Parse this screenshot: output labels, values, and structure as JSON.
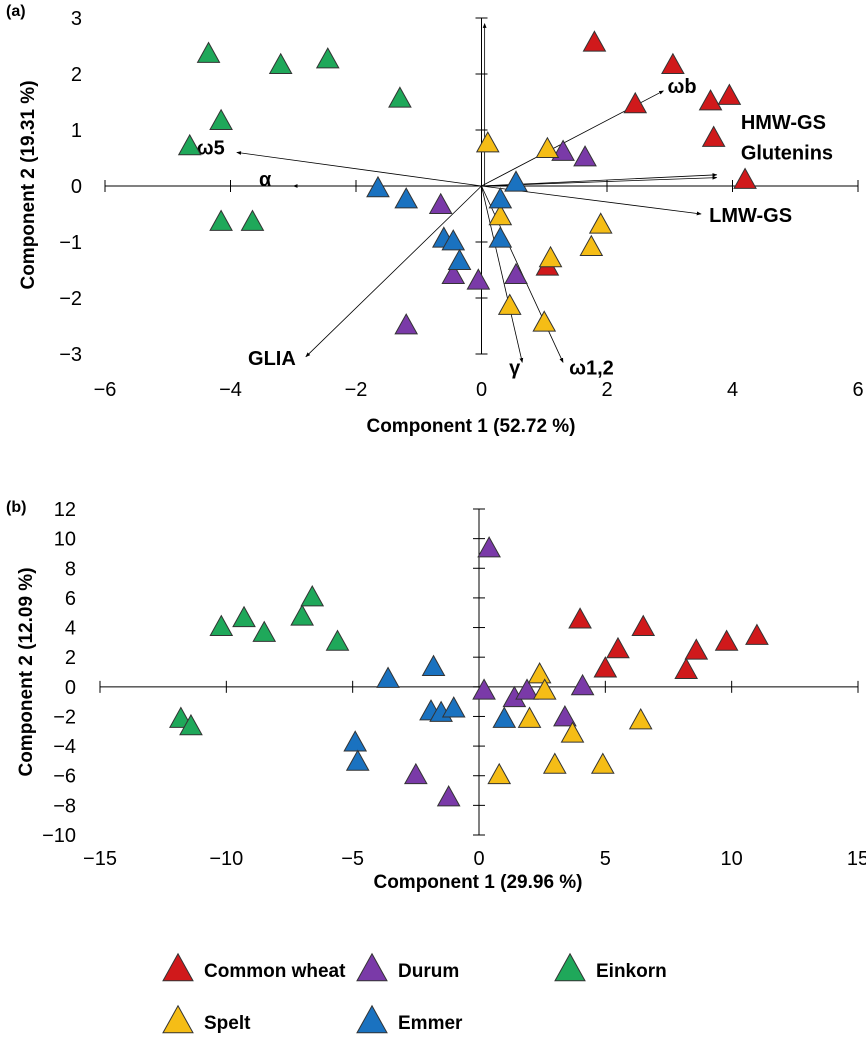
{
  "legend": [
    {
      "name": "Common wheat",
      "color": "#d0191b"
    },
    {
      "name": "Durum",
      "color": "#7a3aa8"
    },
    {
      "name": "Einkorn",
      "color": "#1fa85a"
    },
    {
      "name": "Spelt",
      "color": "#f5bd16"
    },
    {
      "name": "Emmer",
      "color": "#1a72c0"
    }
  ],
  "chart_data": [
    {
      "type": "scatter",
      "panel_label": "(a)",
      "xlabel": "Component 1 (52.72 %)",
      "ylabel": "Component 2 (19.31 %)",
      "xlim": [
        -6,
        6
      ],
      "ylim": [
        -3,
        3
      ],
      "x_ticks": [
        "−6",
        "−4",
        "−2",
        "0",
        "2",
        "4",
        "6"
      ],
      "y_ticks": [
        "3",
        "2",
        "1",
        "0",
        "−1",
        "−2",
        "−3"
      ],
      "series": [
        {
          "name": "Common wheat",
          "points": [
            [
              1.8,
              2.55
            ],
            [
              3.05,
              2.15
            ],
            [
              2.45,
              1.45
            ],
            [
              3.65,
              1.5
            ],
            [
              3.95,
              1.6
            ],
            [
              3.7,
              0.85
            ],
            [
              4.2,
              0.1
            ],
            [
              1.05,
              -1.45
            ]
          ]
        },
        {
          "name": "Durum",
          "points": [
            [
              1.3,
              0.6
            ],
            [
              1.65,
              0.5
            ],
            [
              -0.65,
              -0.35
            ],
            [
              -0.45,
              -1.6
            ],
            [
              -0.05,
              -1.7
            ],
            [
              0.55,
              -1.6
            ],
            [
              -1.2,
              -2.5
            ]
          ]
        },
        {
          "name": "Einkorn",
          "points": [
            [
              -4.35,
              2.35
            ],
            [
              -3.2,
              2.15
            ],
            [
              -2.45,
              2.25
            ],
            [
              -1.3,
              1.55
            ],
            [
              -4.15,
              1.15
            ],
            [
              -4.65,
              0.7
            ],
            [
              -4.15,
              -0.65
            ],
            [
              -3.65,
              -0.65
            ]
          ]
        },
        {
          "name": "Spelt",
          "points": [
            [
              0.1,
              0.75
            ],
            [
              1.05,
              0.65
            ],
            [
              0.3,
              -0.55
            ],
            [
              1.9,
              -0.7
            ],
            [
              1.1,
              -1.3
            ],
            [
              1.75,
              -1.1
            ],
            [
              0.45,
              -2.15
            ],
            [
              1.0,
              -2.45
            ]
          ]
        },
        {
          "name": "Emmer",
          "points": [
            [
              -1.65,
              -0.05
            ],
            [
              -1.2,
              -0.25
            ],
            [
              0.3,
              -0.25
            ],
            [
              0.55,
              0.05
            ],
            [
              -0.6,
              -0.95
            ],
            [
              -0.45,
              -1.0
            ],
            [
              -0.35,
              -1.35
            ],
            [
              0.3,
              -0.95
            ]
          ]
        }
      ],
      "vectors": [
        {
          "label": "ωb",
          "x": 2.9,
          "y": 1.7
        },
        {
          "label": "HMW-GS",
          "x": 3.75,
          "y": 0.2
        },
        {
          "label": "Glutenins",
          "x": 3.75,
          "y": 0.15
        },
        {
          "label": "LMW-GS",
          "x": 3.5,
          "y": -0.5
        },
        {
          "label": "ω5",
          "x": -3.9,
          "y": 0.6
        },
        {
          "label": "α",
          "x": -3.0,
          "y": 0.0
        },
        {
          "label": "GLIA",
          "x": -2.8,
          "y": -3.05
        },
        {
          "label": "γ",
          "x": 0.65,
          "y": -3.15
        },
        {
          "label": "ω1,2",
          "x": 1.3,
          "y": -3.15
        }
      ],
      "vertical_guide": {
        "x": 0.05,
        "y_top": 2.9
      }
    },
    {
      "type": "scatter",
      "panel_label": "(b)",
      "xlabel": "Component 1 (29.96 %)",
      "ylabel": "Component 2 (12.09 %)",
      "xlim": [
        -15,
        15
      ],
      "ylim": [
        -10,
        12
      ],
      "x_ticks": [
        "−15",
        "−10",
        "−5",
        "0",
        "5",
        "10",
        "15"
      ],
      "y_ticks": [
        "12",
        "10",
        "8",
        "6",
        "4",
        "2",
        "0",
        "−2",
        "−4",
        "−6",
        "−8",
        "−10"
      ],
      "series": [
        {
          "name": "Common wheat",
          "points": [
            [
              4.0,
              4.5
            ],
            [
              6.5,
              4.0
            ],
            [
              5.5,
              2.5
            ],
            [
              5.0,
              1.2
            ],
            [
              8.2,
              1.1
            ],
            [
              8.6,
              2.4
            ],
            [
              9.8,
              3.0
            ],
            [
              11.0,
              3.4
            ]
          ]
        },
        {
          "name": "Durum",
          "points": [
            [
              0.4,
              9.3
            ],
            [
              0.2,
              -0.3
            ],
            [
              1.4,
              -0.8
            ],
            [
              1.9,
              -0.3
            ],
            [
              4.1,
              0.0
            ],
            [
              3.4,
              -2.1
            ],
            [
              -2.5,
              -6.0
            ],
            [
              -1.2,
              -7.5
            ]
          ]
        },
        {
          "name": "Einkorn",
          "points": [
            [
              -10.2,
              4.0
            ],
            [
              -9.3,
              4.6
            ],
            [
              -8.5,
              3.6
            ],
            [
              -7.0,
              4.7
            ],
            [
              -6.6,
              6.0
            ],
            [
              -5.6,
              3.0
            ],
            [
              -11.8,
              -2.2
            ],
            [
              -11.4,
              -2.7
            ]
          ]
        },
        {
          "name": "Spelt",
          "points": [
            [
              2.4,
              0.8
            ],
            [
              2.6,
              -0.3
            ],
            [
              2.0,
              -2.2
            ],
            [
              3.7,
              -3.2
            ],
            [
              6.4,
              -2.3
            ],
            [
              3.0,
              -5.3
            ],
            [
              4.9,
              -5.3
            ],
            [
              0.8,
              -6.0
            ]
          ]
        },
        {
          "name": "Emmer",
          "points": [
            [
              -1.8,
              1.3
            ],
            [
              -3.6,
              0.5
            ],
            [
              -1.9,
              -1.7
            ],
            [
              -1.5,
              -1.8
            ],
            [
              -1.0,
              -1.5
            ],
            [
              1.0,
              -2.2
            ],
            [
              -4.9,
              -3.8
            ],
            [
              -4.8,
              -5.1
            ]
          ]
        }
      ]
    }
  ]
}
